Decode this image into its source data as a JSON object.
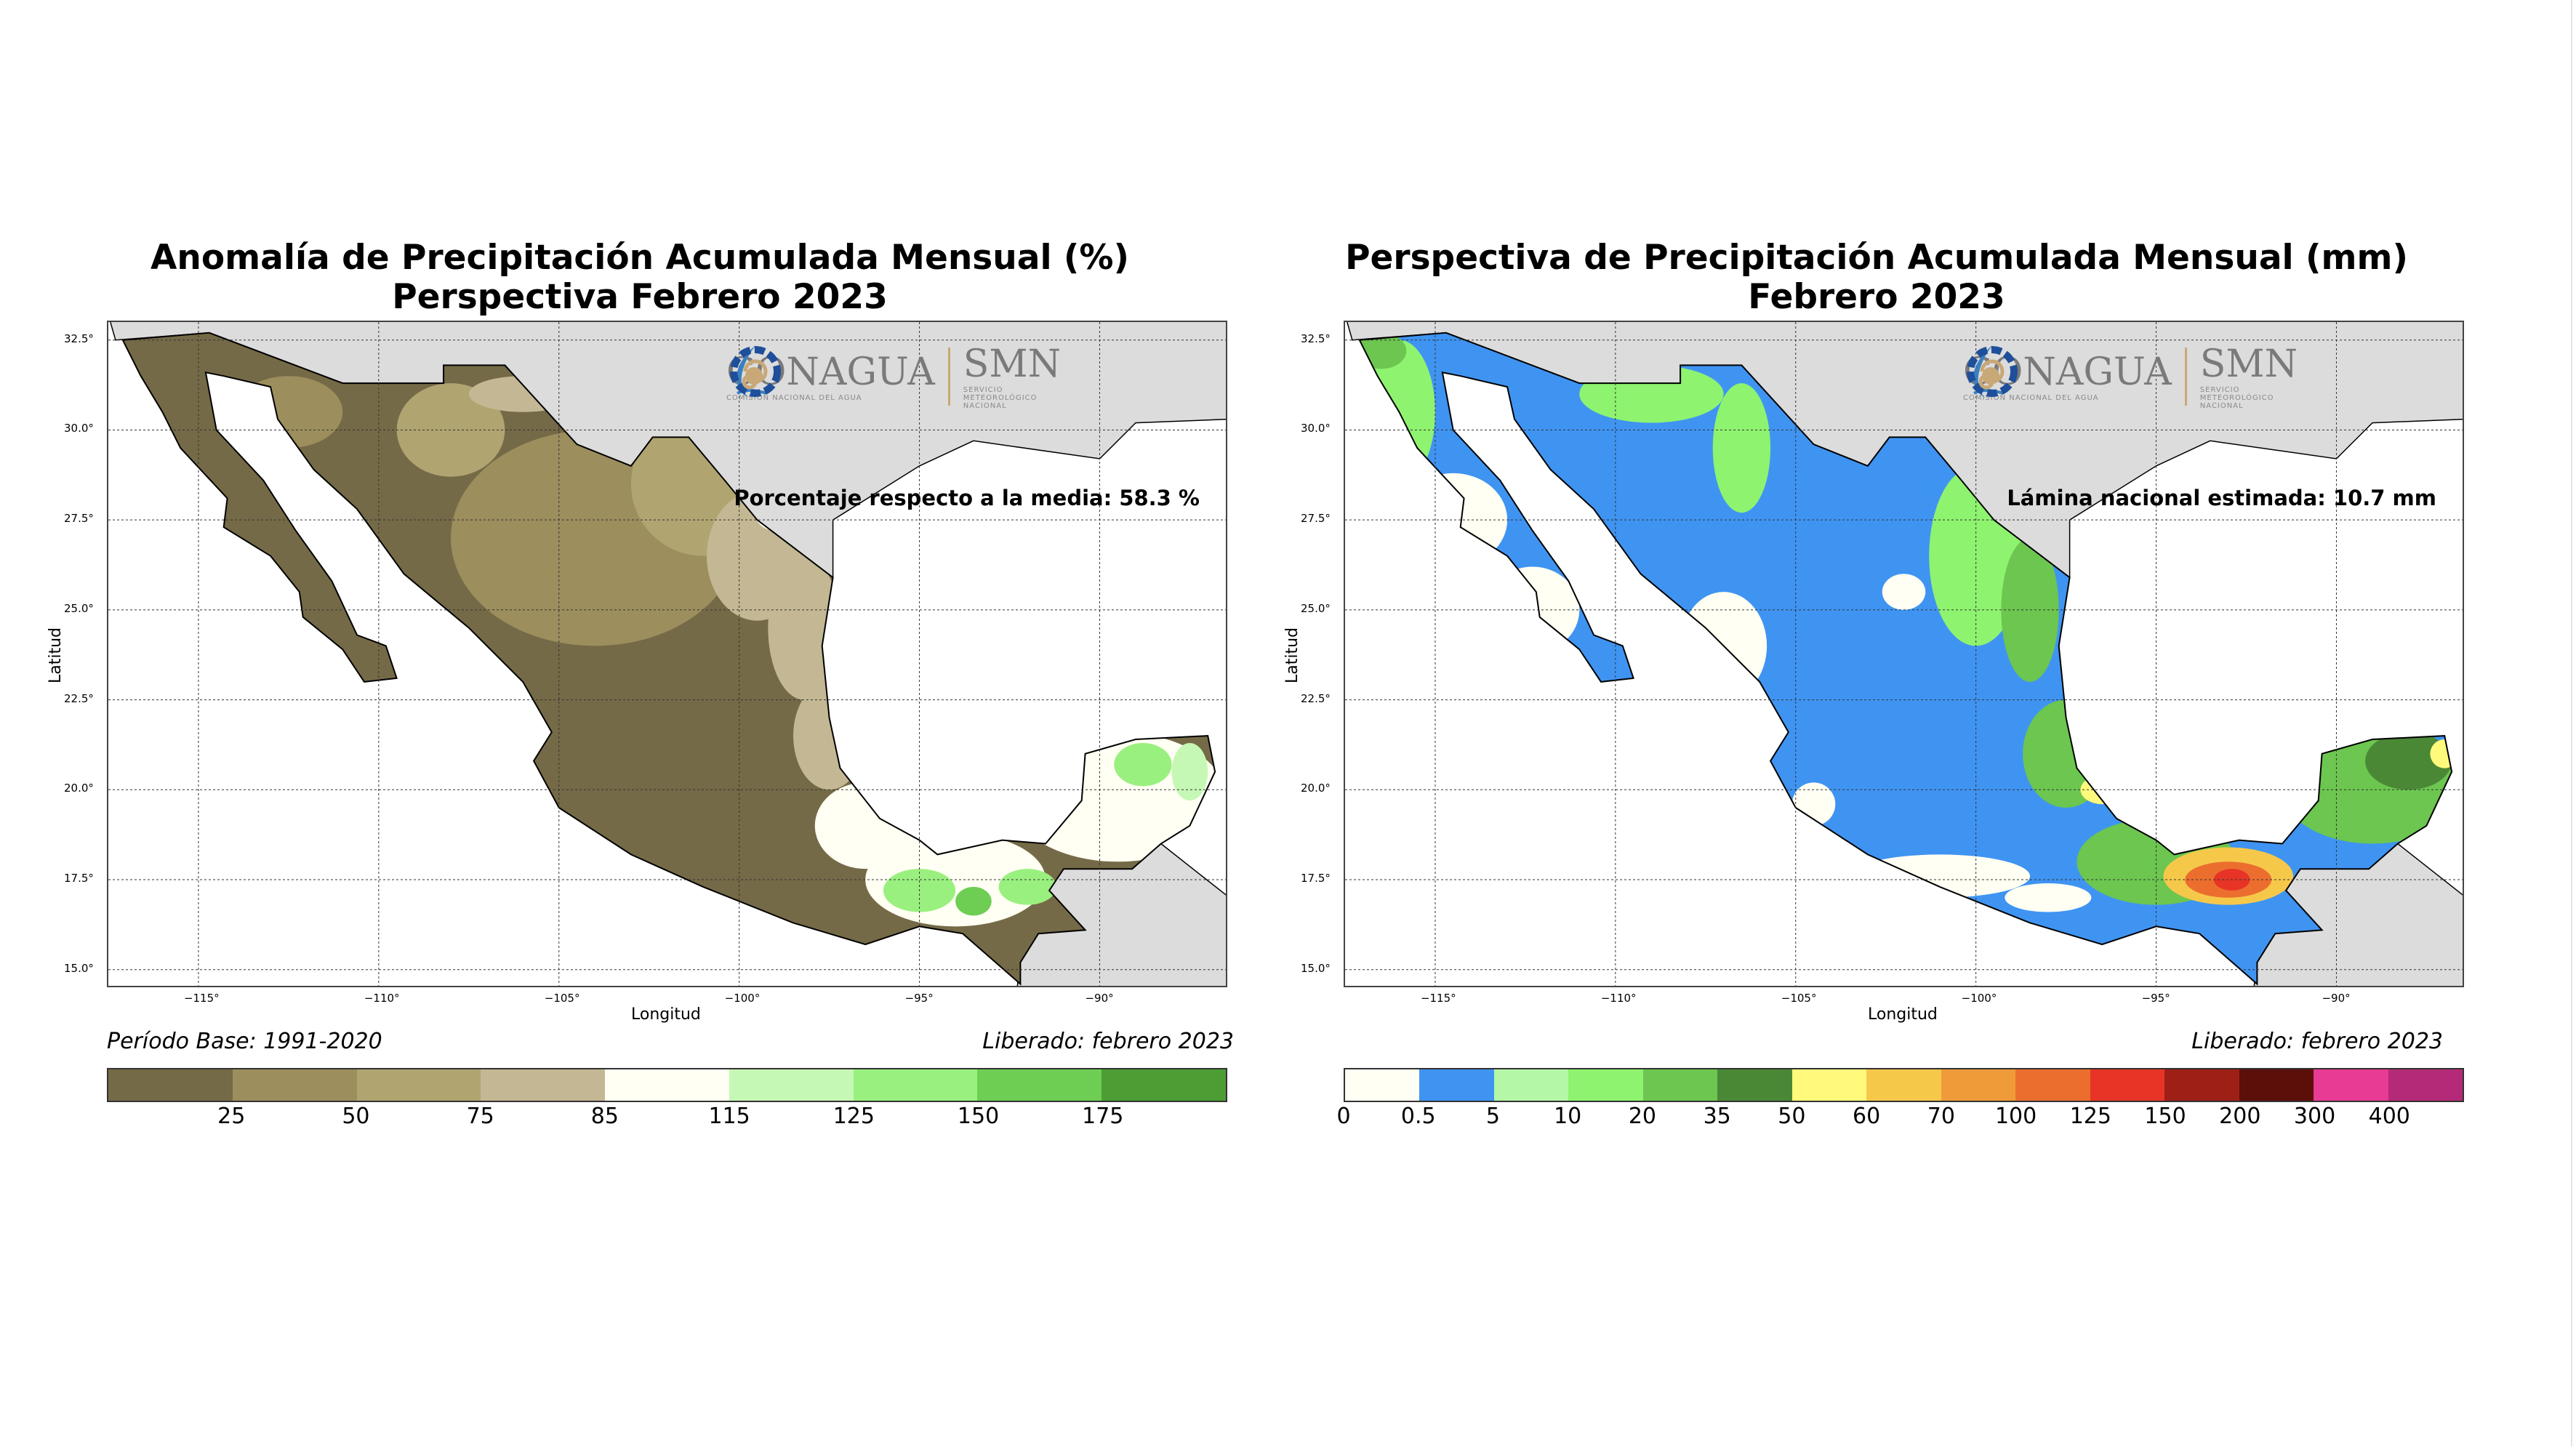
{
  "left": {
    "title": [
      "Anomalía de Precipitación Acumulada Mensual (%)",
      "Perspectiva Febrero 2023"
    ],
    "annotation": "Porcentaje respecto a la media: 58.3 %",
    "base_period": "Período Base: 1991-2020",
    "released": "Liberado: febrero 2023",
    "colorbar": {
      "ticks": [
        "",
        "25",
        "50",
        "75",
        "85",
        "115",
        "125",
        "150",
        "175",
        ""
      ],
      "colors": [
        "#756a47",
        "#9c8e5d",
        "#b0a471",
        "#c3b893",
        "#fffff3",
        "#c6f8b5",
        "#9af07f",
        "#6ecd53",
        "#4c9e34"
      ]
    },
    "fill_colors": {
      "base": "#756a47",
      "mid": "#9c8e5d",
      "light": "#b0a471",
      "pale": "#c3b893",
      "white": "#fffff3",
      "g1": "#c6f8b5",
      "g2": "#9af07f",
      "g3": "#6ecd53"
    }
  },
  "right": {
    "title": [
      "Perspectiva de Precipitación Acumulada Mensual (mm)",
      "Febrero 2023"
    ],
    "annotation": "Lámina nacional estimada: 10.7 mm",
    "released": "Liberado: febrero 2023",
    "colorbar": {
      "ticks": [
        "0",
        "0.5",
        "5",
        "10",
        "20",
        "35",
        "50",
        "60",
        "70",
        "100",
        "125",
        "150",
        "200",
        "300",
        "400",
        ""
      ],
      "colors": [
        "#fffff3",
        "#3f94f2",
        "#b3f7a7",
        "#8ef36f",
        "#6cc64f",
        "#4a8836",
        "#fffa7c",
        "#f6c84a",
        "#f09b3a",
        "#ec6e2e",
        "#e73427",
        "#9e1f16",
        "#5c0e09",
        "#e83b94",
        "#b52a78"
      ]
    },
    "fill_colors": {
      "base": "#3f94f2",
      "white": "#fffff3",
      "g1": "#b3f7a7",
      "g2": "#8ef36f",
      "g3": "#6cc64f",
      "g4": "#4a8836",
      "y": "#fffa7c",
      "o1": "#f6c84a",
      "o2": "#f09b3a",
      "o3": "#ec6e2e",
      "r": "#e73427",
      "dr": "#9e1f16"
    }
  },
  "axes": {
    "xlabel": "Longitud",
    "ylabel": "Latitud",
    "lon_ticks": [
      "−115°",
      "−110°",
      "−105°",
      "−100°",
      "−95°",
      "−90°"
    ],
    "lon_values": [
      -115,
      -110,
      -105,
      -100,
      -95,
      -90
    ],
    "lat_ticks": [
      "32.5°",
      "30.0°",
      "27.5°",
      "25.0°",
      "22.5°",
      "20.0°",
      "17.5°",
      "15.0°"
    ],
    "lat_values": [
      32.5,
      30,
      27.5,
      25,
      22.5,
      20,
      17.5,
      15
    ],
    "lon_range": [
      -117.5,
      -86.5
    ],
    "lat_range": [
      14.55,
      33.0
    ]
  },
  "logo": {
    "conagua": "CONAGUA",
    "conagua_sub": "COMISIÓN NACIONAL DEL AGUA",
    "smn": "SMN",
    "smn_sub": "SERVICIO METEOROLÓGICO NACIONAL"
  },
  "colors": {
    "land_other": "#dcdcdc",
    "grid": "#333333"
  }
}
